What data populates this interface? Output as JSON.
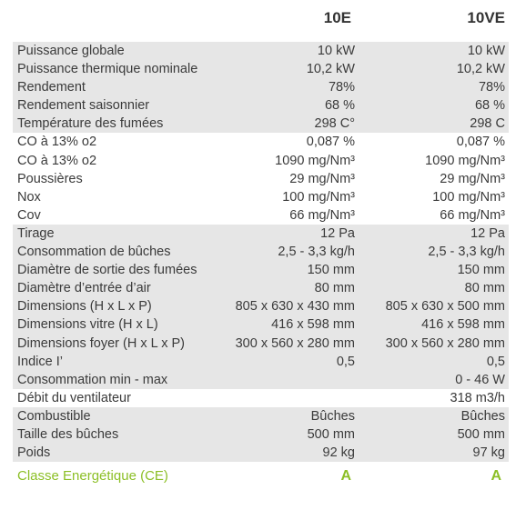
{
  "header": {
    "col1": "10E",
    "col2": "10VE"
  },
  "rows": [
    {
      "label": "Puissance globale",
      "v1": "10 kW",
      "v2": "10 kW"
    },
    {
      "label": "Puissance thermique nominale",
      "v1": "10,2 kW",
      "v2": "10,2 kW"
    },
    {
      "label": "Rendement",
      "v1": "78%",
      "v2": "78%"
    },
    {
      "label": "Rendement saisonnier",
      "v1": "68 %",
      "v2": "68 %"
    },
    {
      "label": "Température des fumées",
      "v1": "298 C°",
      "v2": "298 C"
    },
    {
      "label": "CO à 13% o2",
      "v1": "0,087 %",
      "v2": "0,087 %"
    },
    {
      "label": "CO à 13% o2",
      "v1": "1090 mg/Nm³",
      "v2": "1090 mg/Nm³"
    },
    {
      "label": "Poussières",
      "v1": "29 mg/Nm³",
      "v2": "29 mg/Nm³"
    },
    {
      "label": "Nox",
      "v1": "100 mg/Nm³",
      "v2": "100 mg/Nm³"
    },
    {
      "label": "Cov",
      "v1": "66 mg/Nm³",
      "v2": "66 mg/Nm³"
    },
    {
      "label": "Tirage",
      "v1": "12 Pa",
      "v2": "12 Pa"
    },
    {
      "label": "Consommation de bûches",
      "v1": "2,5 - 3,3 kg/h",
      "v2": "2,5 - 3,3 kg/h"
    },
    {
      "label": "Diamètre de sortie des fumées",
      "v1": "150 mm",
      "v2": "150 mm"
    },
    {
      "label": "Diamètre d’entrée d’air",
      "v1": "80 mm",
      "v2": "80 mm"
    },
    {
      "label": "Dimensions (H x L x P)",
      "v1": "805 x 630 x 430 mm",
      "v2": "805 x 630 x 500 mm"
    },
    {
      "label": "Dimensions vitre (H x L)",
      "v1": "416 x 598 mm",
      "v2": "416 x 598 mm"
    },
    {
      "label": "Dimensions foyer (H x L x P)",
      "v1": "300 x 560 x 280 mm",
      "v2": "300 x 560 x 280 mm"
    },
    {
      "label": "Indice I’",
      "v1": "0,5",
      "v2": "0,5"
    },
    {
      "label": "Consommation min - max",
      "v1": "",
      "v2": "0 - 46 W"
    },
    {
      "label": "Débit du ventilateur",
      "v1": "",
      "v2": "318 m3/h"
    },
    {
      "label": "Combustible",
      "v1": "Bûches",
      "v2": "Bûches"
    },
    {
      "label": "Taille des bûches",
      "v1": "500 mm",
      "v2": "500 mm"
    },
    {
      "label": "Poids",
      "v1": "92 kg",
      "v2": "97 kg"
    }
  ],
  "energy": {
    "label": "Classe Energétique (CE)",
    "v1": "A",
    "v2": "A",
    "color": "#8cbf26"
  },
  "colors": {
    "row_shade": "#e6e6e6",
    "text": "#3a3a3a"
  }
}
